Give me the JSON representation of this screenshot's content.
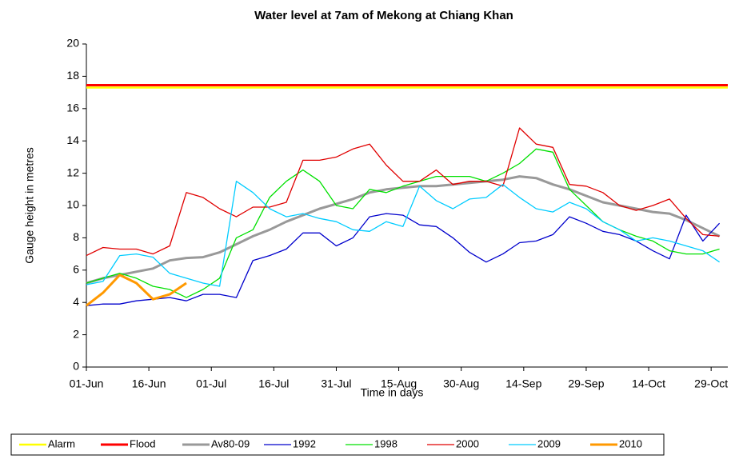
{
  "chart_data": {
    "type": "line",
    "title": "Water level at 7am of Mekong at Chiang Khan",
    "x_label": "Time in days",
    "y_label": "Gauge height in metres",
    "x": [
      0,
      4,
      8,
      12,
      16,
      20,
      24,
      28,
      32,
      36,
      40,
      44,
      48,
      52,
      56,
      60,
      64,
      68,
      72,
      76,
      80,
      84,
      88,
      92,
      96,
      100,
      104,
      108,
      112,
      116,
      120,
      124,
      128,
      132,
      136,
      140,
      144,
      148,
      152
    ],
    "xlim": [
      0,
      154
    ],
    "xticks": [
      {
        "value": 0,
        "label": "01-Jun"
      },
      {
        "value": 15,
        "label": "16-Jun"
      },
      {
        "value": 30,
        "label": "01-Jul"
      },
      {
        "value": 45,
        "label": "16-Jul"
      },
      {
        "value": 60,
        "label": "31-Jul"
      },
      {
        "value": 75,
        "label": "15-Aug"
      },
      {
        "value": 90,
        "label": "30-Aug"
      },
      {
        "value": 105,
        "label": "14-Sep"
      },
      {
        "value": 120,
        "label": "29-Sep"
      },
      {
        "value": 135,
        "label": "14-Oct"
      },
      {
        "value": 150,
        "label": "29-Oct"
      }
    ],
    "ylim": [
      0,
      20
    ],
    "yticks": [
      0,
      2,
      4,
      6,
      8,
      10,
      12,
      14,
      16,
      18,
      20
    ],
    "series": [
      {
        "name": "Alarm",
        "color": "#ffff00",
        "width": 2.5,
        "value": 17.3
      },
      {
        "name": "Flood",
        "color": "#ff0000",
        "width": 3,
        "value": 17.45
      },
      {
        "name": "Av80-09",
        "color": "#999999",
        "width": 3,
        "values": [
          5.2,
          5.5,
          5.7,
          5.9,
          6.1,
          6.6,
          6.75,
          6.8,
          7.1,
          7.6,
          8.1,
          8.5,
          9.0,
          9.4,
          9.8,
          10.1,
          10.4,
          10.8,
          11.0,
          11.1,
          11.2,
          11.2,
          11.3,
          11.4,
          11.5,
          11.6,
          11.8,
          11.7,
          11.3,
          11.0,
          10.6,
          10.2,
          10.0,
          9.8,
          9.6,
          9.5,
          9.1,
          8.6,
          8.1
        ]
      },
      {
        "name": "1992",
        "color": "#0000cc",
        "width": 1.3,
        "values": [
          3.8,
          3.9,
          3.9,
          4.1,
          4.2,
          4.3,
          4.1,
          4.5,
          4.5,
          4.3,
          6.6,
          6.9,
          7.3,
          8.3,
          8.3,
          7.5,
          8.0,
          9.3,
          9.5,
          9.4,
          8.8,
          8.7,
          8.0,
          7.1,
          6.5,
          7.0,
          7.7,
          7.8,
          8.2,
          9.3,
          8.9,
          8.4,
          8.2,
          7.8,
          7.2,
          6.7,
          9.4,
          7.8,
          8.9
        ]
      },
      {
        "name": "1998",
        "color": "#00e000",
        "width": 1.3,
        "values": [
          5.2,
          5.5,
          5.8,
          5.5,
          5.0,
          4.8,
          4.3,
          4.8,
          5.5,
          8.0,
          8.5,
          10.5,
          11.5,
          12.2,
          11.5,
          10.0,
          9.8,
          11.0,
          10.8,
          11.2,
          11.5,
          11.8,
          11.8,
          11.8,
          11.5,
          12.0,
          12.6,
          13.5,
          13.3,
          11.0,
          10.0,
          9.0,
          8.5,
          8.1,
          7.8,
          7.2,
          7.0,
          7.0,
          7.3
        ]
      },
      {
        "name": "2000",
        "color": "#e00000",
        "width": 1.3,
        "values": [
          6.9,
          7.4,
          7.3,
          7.3,
          7.0,
          7.5,
          10.8,
          10.5,
          9.8,
          9.3,
          9.9,
          9.9,
          10.2,
          12.8,
          12.8,
          13.0,
          13.5,
          13.8,
          12.5,
          11.5,
          11.5,
          12.2,
          11.3,
          11.5,
          11.5,
          11.2,
          14.8,
          13.8,
          13.6,
          11.3,
          11.2,
          10.8,
          10.0,
          9.7,
          10.0,
          10.4,
          9.2,
          8.2,
          8.1
        ]
      },
      {
        "name": "2009",
        "color": "#00ccff",
        "width": 1.3,
        "values": [
          5.1,
          5.3,
          6.9,
          7.0,
          6.8,
          5.8,
          5.5,
          5.2,
          5.0,
          11.5,
          10.8,
          9.8,
          9.3,
          9.5,
          9.2,
          9.0,
          8.5,
          8.4,
          9.0,
          8.7,
          11.2,
          10.3,
          9.8,
          10.4,
          10.5,
          11.3,
          10.5,
          9.8,
          9.6,
          10.2,
          9.8,
          9.0,
          8.5,
          7.8,
          8.0,
          7.8,
          7.5,
          7.2,
          6.5
        ]
      },
      {
        "name": "2010",
        "color": "#ff9900",
        "width": 3,
        "values": [
          3.8,
          4.6,
          5.7,
          5.2,
          4.2,
          4.5,
          5.2,
          null,
          null,
          null,
          null,
          null,
          null,
          null,
          null,
          null,
          null,
          null,
          null,
          null,
          null,
          null,
          null,
          null,
          null,
          null,
          null,
          null,
          null,
          null,
          null,
          null,
          null,
          null,
          null,
          null,
          null,
          null,
          null
        ]
      }
    ]
  }
}
